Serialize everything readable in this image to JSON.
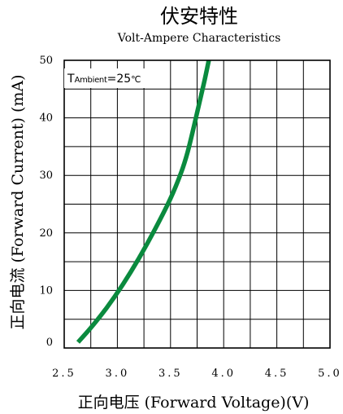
{
  "chart_data": {
    "type": "line",
    "title": "伏安特性",
    "subtitle": "Volt-Ampere Characteristics",
    "xlabel": "正向电压 (Forward  Voltage)(V)",
    "ylabel": "正向电流 (Forward  Current) (mA)",
    "annotation": {
      "prefix": "T",
      "subscript": "Ambient",
      "suffix": "=25",
      "unit": "℃"
    },
    "xlim": [
      2.5,
      5.0
    ],
    "ylim": [
      0,
      50
    ],
    "grid": true,
    "x_ticks": [
      2.5,
      3.0,
      3.5,
      4.0,
      4.5,
      5.0
    ],
    "x_tick_labels": [
      "2.5",
      "3.0",
      "3.5",
      "4.0",
      "4.5",
      "5.0"
    ],
    "y_ticks": [
      0,
      10,
      20,
      30,
      40,
      50
    ],
    "y_tick_labels": [
      "0",
      "10",
      "20",
      "30",
      "40",
      "50"
    ],
    "series": [
      {
        "color": "#0a8a3e",
        "x": [
          2.63,
          2.75,
          2.9,
          3.05,
          3.2,
          3.35,
          3.5,
          3.6,
          3.66,
          3.72,
          3.77,
          3.82,
          3.86
        ],
        "y": [
          1.0,
          3.5,
          7.0,
          11.0,
          15.5,
          20.5,
          26.0,
          30.5,
          34.0,
          38.5,
          42.5,
          46.5,
          50.0
        ]
      }
    ]
  }
}
